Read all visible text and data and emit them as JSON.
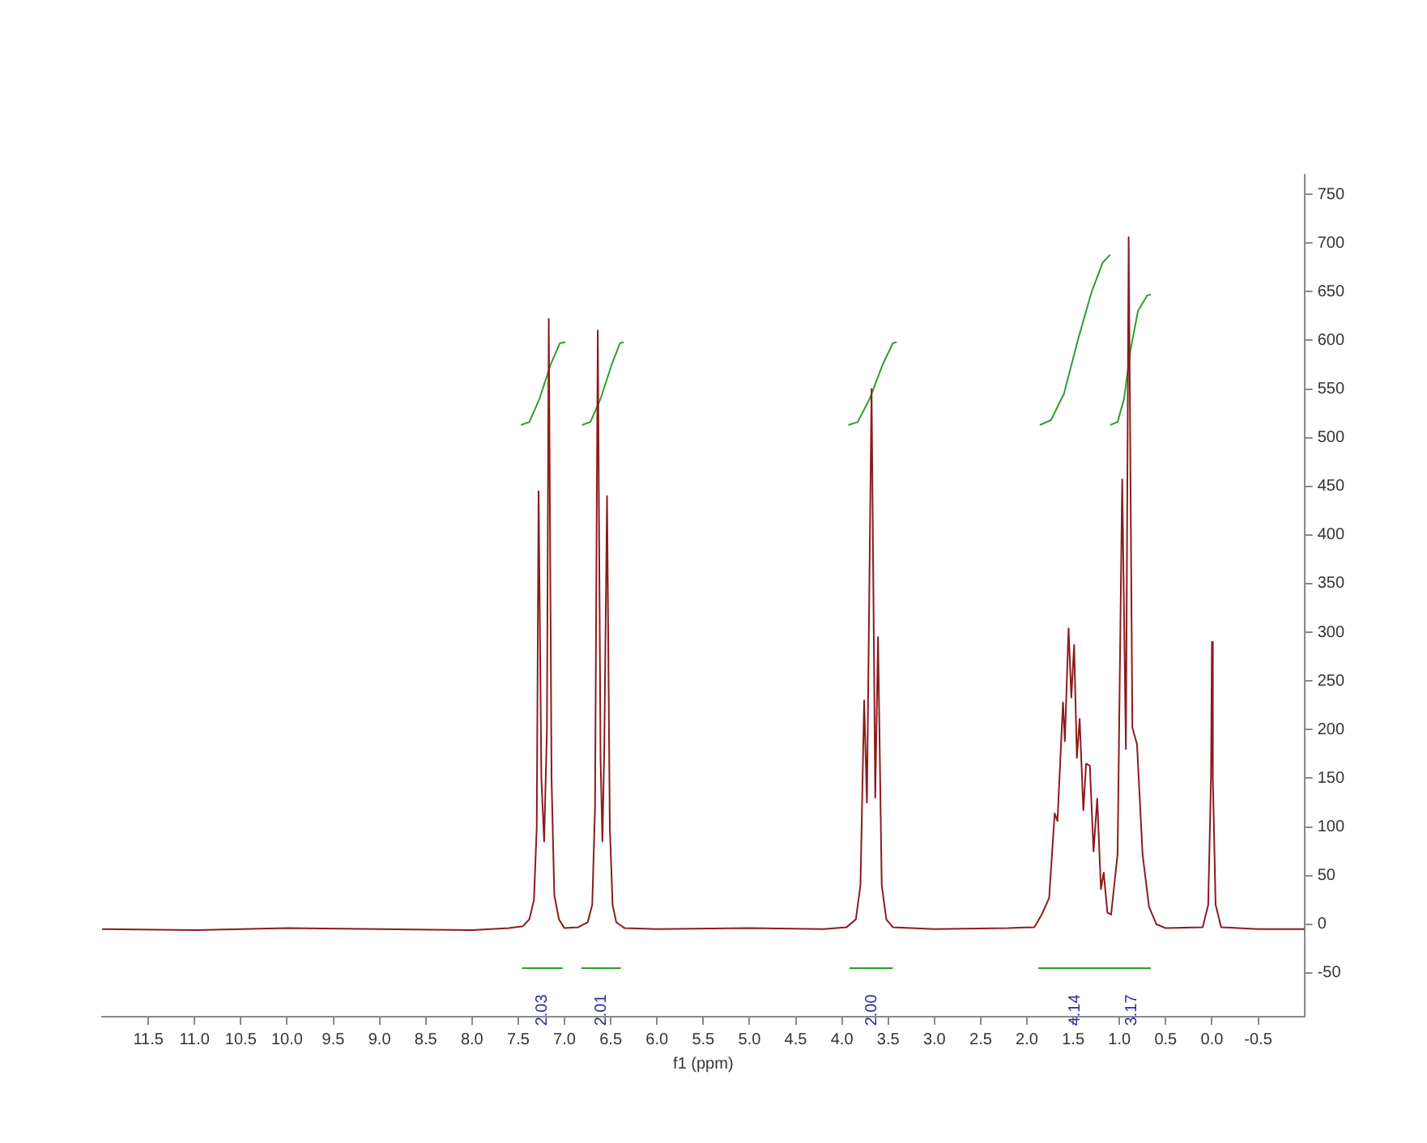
{
  "chart_data": {
    "type": "line",
    "xlabel": "f1 (ppm)",
    "xlim": [
      12.0,
      -1.0
    ],
    "ylim": [
      -95,
      770
    ],
    "xticks": [
      11.5,
      {
        "value": 11,
        "label": "11.0"
      },
      10.5,
      {
        "value": 10,
        "label": "10.0"
      },
      9.5,
      {
        "value": 9,
        "label": "9.0"
      },
      8.5,
      {
        "value": 8,
        "label": "8.0"
      },
      7.5,
      {
        "value": 7,
        "label": "7.0"
      },
      6.5,
      {
        "value": 6,
        "label": "6.0"
      },
      5.5,
      {
        "value": 5,
        "label": "5.0"
      },
      4.5,
      {
        "value": 4,
        "label": "4.0"
      },
      3.5,
      {
        "value": 3,
        "label": "3.0"
      },
      2.5,
      {
        "value": 2,
        "label": "2.0"
      },
      1.5,
      {
        "value": 1,
        "label": "1.0"
      },
      0.5,
      {
        "value": 0,
        "label": "0.0"
      },
      -0.5
    ],
    "yticks": [
      -50,
      0,
      50,
      100,
      150,
      200,
      250,
      300,
      350,
      400,
      450,
      500,
      550,
      600,
      650,
      700,
      750
    ],
    "grid": false,
    "series": [
      {
        "color": "#8b1c1c",
        "x": [
          12.0,
          11.0,
          10.0,
          9.0,
          8.0,
          7.6,
          7.45,
          7.38,
          7.33,
          7.3,
          7.28,
          7.25,
          7.22,
          7.19,
          7.17,
          7.14,
          7.11,
          7.06,
          7.0,
          6.85,
          6.75,
          6.7,
          6.67,
          6.64,
          6.61,
          6.59,
          6.57,
          6.54,
          6.51,
          6.48,
          6.44,
          6.35,
          6.0,
          5.0,
          4.2,
          3.95,
          3.85,
          3.8,
          3.76,
          3.73,
          3.68,
          3.64,
          3.61,
          3.57,
          3.52,
          3.45,
          3.0,
          2.2,
          1.92,
          1.84,
          1.76,
          1.7,
          1.67,
          1.61,
          1.59,
          1.55,
          1.52,
          1.49,
          1.46,
          1.43,
          1.39,
          1.36,
          1.32,
          1.28,
          1.24,
          1.2,
          1.17,
          1.13,
          1.09,
          1.02,
          0.97,
          0.93,
          0.9,
          0.86,
          0.81,
          0.75,
          0.68,
          0.6,
          0.5,
          0.1,
          0.04,
          0.01,
          0.0,
          -0.01,
          -0.04,
          -0.1,
          -0.5,
          -1.0
        ],
        "values": [
          -5,
          -6,
          -4,
          -5,
          -6,
          -4,
          -2,
          5,
          25,
          100,
          445,
          150,
          85,
          200,
          622,
          150,
          30,
          5,
          -4,
          -3,
          2,
          20,
          120,
          610,
          170,
          85,
          180,
          440,
          100,
          20,
          2,
          -4,
          -5,
          -4,
          -5,
          -3,
          5,
          40,
          230,
          125,
          550,
          130,
          295,
          40,
          5,
          -3,
          -5,
          -4,
          -3,
          10,
          27,
          114,
          106,
          228,
          188,
          304,
          233,
          287,
          171,
          211,
          117,
          165,
          163,
          75,
          129,
          36,
          53,
          12,
          10,
          72,
          457,
          180,
          706,
          202,
          185,
          72,
          18,
          0,
          -4,
          -3,
          20,
          150,
          290,
          150,
          20,
          -3,
          -5,
          -5
        ]
      },
      {
        "color": "#2e9e2e",
        "x": [
          7.47,
          7.38,
          7.27,
          7.15,
          7.05,
          6.99
        ],
        "values": [
          513,
          516,
          540,
          575,
          597,
          598
        ]
      },
      {
        "color": "#2e9e2e",
        "x": [
          6.81,
          6.72,
          6.61,
          6.49,
          6.4,
          6.36
        ],
        "values": [
          513,
          516,
          540,
          575,
          597,
          598
        ]
      },
      {
        "color": "#2e9e2e",
        "x": [
          3.93,
          3.83,
          3.7,
          3.56,
          3.45,
          3.41
        ],
        "values": [
          513,
          516,
          540,
          575,
          597,
          598
        ]
      },
      {
        "color": "#2e9e2e",
        "x": [
          1.86,
          1.74,
          1.6,
          1.45,
          1.3,
          1.18,
          1.1
        ],
        "values": [
          513,
          518,
          545,
          600,
          650,
          680,
          688
        ]
      },
      {
        "color": "#2e9e2e",
        "x": [
          1.1,
          1.02,
          0.95,
          0.88,
          0.8,
          0.7,
          0.66
        ],
        "values": [
          513,
          516,
          540,
          590,
          630,
          646,
          647
        ]
      },
      {
        "color": "#2e9e2e",
        "x": [
          7.46,
          7.02
        ],
        "values": [
          -45,
          -45
        ]
      },
      {
        "color": "#2e9e2e",
        "x": [
          6.82,
          6.39
        ],
        "values": [
          -45,
          -45
        ]
      },
      {
        "color": "#2e9e2e",
        "x": [
          3.92,
          3.45
        ],
        "values": [
          -45,
          -45
        ]
      },
      {
        "color": "#2e9e2e",
        "x": [
          1.88,
          1.09,
          0.66
        ],
        "values": [
          -45,
          -45,
          -45
        ]
      }
    ],
    "annotations": [
      {
        "text": "2.03",
        "x": 7.24,
        "y": -45
      },
      {
        "text": "2.01",
        "x": 6.6,
        "y": -45
      },
      {
        "text": "2.00",
        "x": 3.68,
        "y": -45
      },
      {
        "text": "4.14",
        "x": 1.48,
        "y": -45
      },
      {
        "text": "3.17",
        "x": 0.87,
        "y": -45
      }
    ]
  }
}
